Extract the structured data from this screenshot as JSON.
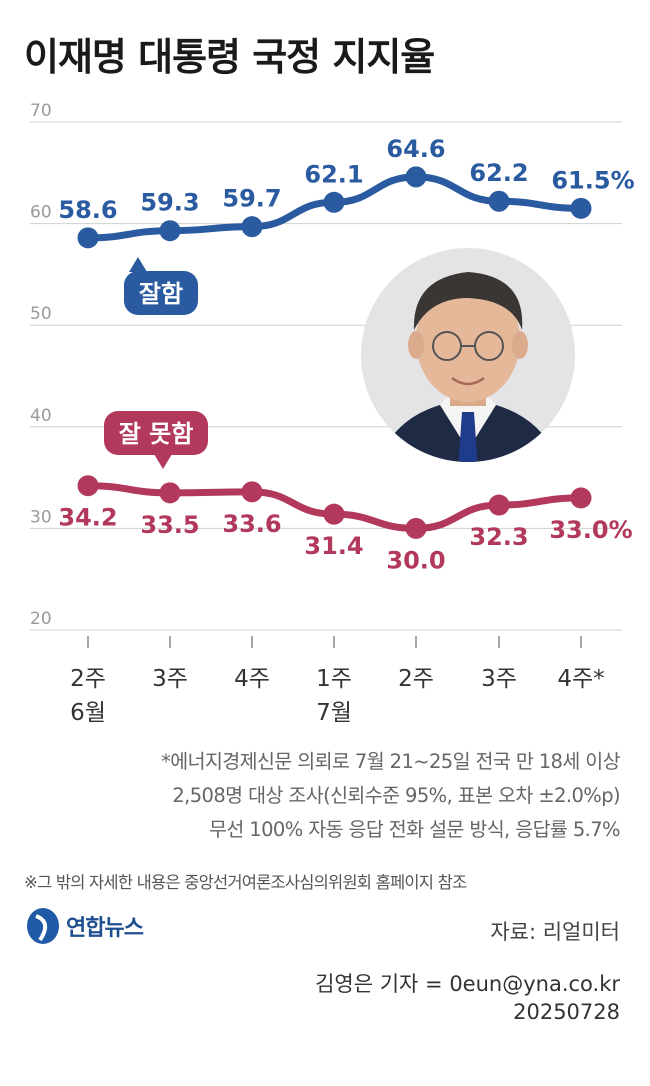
{
  "title": "이재명 대통령 국정 지지율",
  "chart_data": {
    "type": "line",
    "categories": [
      "2주",
      "3주",
      "4주",
      "1주",
      "2주",
      "3주",
      "4주*"
    ],
    "month_labels": [
      "6월",
      "",
      "",
      "7월",
      "",
      "",
      ""
    ],
    "yticks": [
      20,
      30,
      40,
      50,
      60,
      70
    ],
    "ylim": [
      20,
      70
    ],
    "grid": true,
    "series": [
      {
        "name": "잘함",
        "color": "#2a5aa0",
        "values": [
          58.6,
          59.3,
          59.7,
          62.1,
          64.6,
          62.2,
          61.5
        ],
        "labels": [
          "58.6",
          "59.3",
          "59.7",
          "62.1",
          "64.6",
          "62.2",
          "61.5%"
        ]
      },
      {
        "name": "잘 못함",
        "color": "#b2385c",
        "values": [
          34.2,
          33.5,
          33.6,
          31.4,
          30.0,
          32.3,
          33.0
        ],
        "labels": [
          "34.2",
          "33.5",
          "33.6",
          "31.4",
          "30.0",
          "32.3",
          "33.0%"
        ]
      }
    ]
  },
  "notes": [
    "*에너지경제신문 의뢰로 7월 21~25일 전국 만 18세 이상",
    "2,508명 대상 조사(신뢰수준 95%, 표본 오차 ±2.0%p)",
    "무선 100% 자동 응답 전화 설문 방식, 응답률 5.7%"
  ],
  "footnote": "※그 밖의 자세한 내용은 중앙선거여론조사심의위원회 홈페이지 참조",
  "logo_text": "연합뉴스",
  "source": "자료: 리얼미터",
  "credit": [
    "김영은 기자 = 0eun@yna.co.kr",
    "20250728"
  ],
  "colors": {
    "good": "#2a5aa0",
    "bad": "#b2385c",
    "grid": "#cfcfcf",
    "tick": "#9a9a9a"
  },
  "portrait_icon": "person-photo"
}
